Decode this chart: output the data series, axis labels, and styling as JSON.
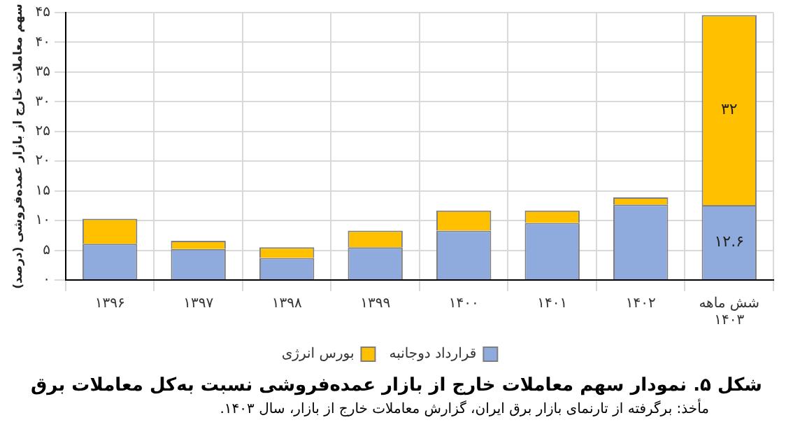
{
  "chart_data": {
    "type": "bar",
    "stacked": true,
    "title": "شکل ۵. نمودار سهم معاملات خارج از بازار عمده‌فروشی نسبت به‌کل معاملات برق",
    "ylabel": "سهم معاملات خارج از بازار عمده‌فروشی (درصد)",
    "categories": [
      "۱۳۹۶",
      "۱۳۹۷",
      "۱۳۹۸",
      "۱۳۹۹",
      "۱۴۰۰",
      "۱۴۰۱",
      "۱۴۰۲",
      "شش ماهه ۱۴۰۳"
    ],
    "series": [
      {
        "name": "قرارداد دوجانبه",
        "color": "#8faadc",
        "values": [
          6.1,
          5.2,
          3.7,
          5.5,
          8.3,
          9.6,
          12.7,
          12.6
        ],
        "value_labels": [
          null,
          null,
          null,
          null,
          null,
          null,
          null,
          "۱۲.۶"
        ]
      },
      {
        "name": "بورس انرژی",
        "color": "#ffc000",
        "values": [
          4.2,
          1.4,
          1.8,
          2.8,
          3.4,
          2.1,
          1.2,
          32
        ],
        "value_labels": [
          null,
          null,
          null,
          null,
          null,
          null,
          null,
          "۳۲"
        ]
      }
    ],
    "ylim": [
      0,
      45
    ],
    "yticks": [
      {
        "value": 0,
        "label": "۰"
      },
      {
        "value": 5,
        "label": "۵"
      },
      {
        "value": 10,
        "label": "۱۰"
      },
      {
        "value": 15,
        "label": "۱۵"
      },
      {
        "value": 20,
        "label": "۲۰"
      },
      {
        "value": 25,
        "label": "۲۵"
      },
      {
        "value": 30,
        "label": "۳۰"
      },
      {
        "value": 35,
        "label": "۳۵"
      },
      {
        "value": 40,
        "label": "۴۰"
      },
      {
        "value": 45,
        "label": "۴۵"
      }
    ],
    "grid": true,
    "legend": "bottom",
    "annotations": [
      "مأخذ: برگرفته از تارنمای بازار برق ایران، گزارش معاملات خارج از بازار، سال ۱۴۰۳."
    ]
  }
}
